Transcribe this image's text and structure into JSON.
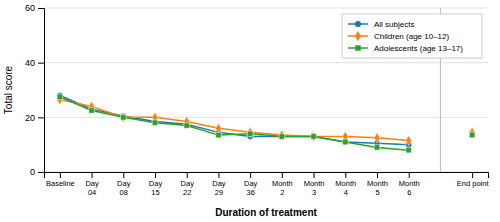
{
  "chart_data": {
    "type": "line",
    "categories": [
      "Baseline",
      "Day\n04",
      "Day\n08",
      "Day\n15",
      "Day\n22",
      "Day\n29",
      "Day\n36",
      "Month\n2",
      "Month\n3",
      "Month\n4",
      "Month\n5",
      "Month\n6",
      null,
      "End point"
    ],
    "series": [
      {
        "name": "All subjects",
        "marker": "circle",
        "values": [
          28.0,
          23.0,
          20.5,
          18.5,
          17.5,
          14.5,
          13.0,
          13.0,
          13.0,
          11.0,
          10.5,
          10.0,
          null,
          14.0
        ]
      },
      {
        "name": "Children (age 10–12)",
        "marker": "diamond",
        "values": [
          26.5,
          24.0,
          20.0,
          20.0,
          18.5,
          16.0,
          14.5,
          13.5,
          13.0,
          13.0,
          12.5,
          11.5,
          null,
          14.5
        ]
      },
      {
        "name": "Adolescents (age 13–17)",
        "marker": "square",
        "values": [
          27.5,
          22.5,
          20.0,
          18.0,
          17.0,
          13.5,
          14.0,
          13.0,
          13.0,
          11.0,
          9.0,
          8.0,
          null,
          13.5
        ]
      }
    ],
    "xlabel": "Duration of treatment",
    "ylabel": "Total score",
    "ylim": [
      0,
      60
    ],
    "yticks": [
      0,
      20,
      40,
      60
    ],
    "grid": true,
    "legend": "upper right"
  }
}
